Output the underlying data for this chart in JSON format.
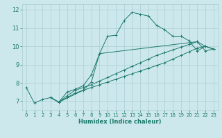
{
  "xlabel": "Humidex (Indice chaleur)",
  "xlim": [
    -0.5,
    23.5
  ],
  "ylim": [
    6.5,
    12.3
  ],
  "yticks": [
    7,
    8,
    9,
    10,
    11,
    12
  ],
  "xticks": [
    0,
    1,
    2,
    3,
    4,
    5,
    6,
    7,
    8,
    9,
    10,
    11,
    12,
    13,
    14,
    15,
    16,
    17,
    18,
    19,
    20,
    21,
    22,
    23
  ],
  "bg_color": "#cde8ec",
  "grid_color": "#aacdd2",
  "line_color": "#1a7a6a",
  "lines": [
    {
      "x": [
        0,
        1,
        2,
        3,
        4,
        5,
        6,
        7,
        8,
        9,
        10,
        11,
        12,
        13,
        14,
        15,
        16,
        17,
        18,
        19,
        20,
        21,
        22,
        23
      ],
      "y": [
        7.75,
        6.9,
        7.1,
        7.2,
        6.95,
        7.5,
        7.65,
        7.85,
        8.45,
        9.6,
        10.55,
        10.6,
        11.4,
        11.85,
        11.75,
        11.65,
        11.15,
        10.9,
        10.55,
        10.55,
        10.3,
        9.75,
        10.0,
        9.85
      ]
    },
    {
      "x": [
        3,
        4,
        7,
        8,
        9,
        21,
        22,
        23
      ],
      "y": [
        7.2,
        6.95,
        7.6,
        8.05,
        9.6,
        10.25,
        9.75,
        9.85
      ]
    },
    {
      "x": [
        3,
        4,
        5,
        6,
        7,
        8,
        9,
        10,
        11,
        12,
        13,
        14,
        15,
        16,
        17,
        18,
        19,
        20,
        21,
        22,
        23
      ],
      "y": [
        7.2,
        6.95,
        7.3,
        7.6,
        7.75,
        7.9,
        8.1,
        8.3,
        8.5,
        8.7,
        8.9,
        9.1,
        9.3,
        9.5,
        9.65,
        9.8,
        9.95,
        10.1,
        10.25,
        10.0,
        9.85
      ]
    },
    {
      "x": [
        3,
        4,
        5,
        6,
        7,
        8,
        9,
        10,
        11,
        12,
        13,
        14,
        15,
        16,
        17,
        18,
        19,
        20,
        21,
        22,
        23
      ],
      "y": [
        7.2,
        6.95,
        7.2,
        7.45,
        7.6,
        7.75,
        7.9,
        8.05,
        8.2,
        8.35,
        8.5,
        8.65,
        8.8,
        8.95,
        9.1,
        9.3,
        9.5,
        9.7,
        9.9,
        10.0,
        9.85
      ]
    }
  ]
}
